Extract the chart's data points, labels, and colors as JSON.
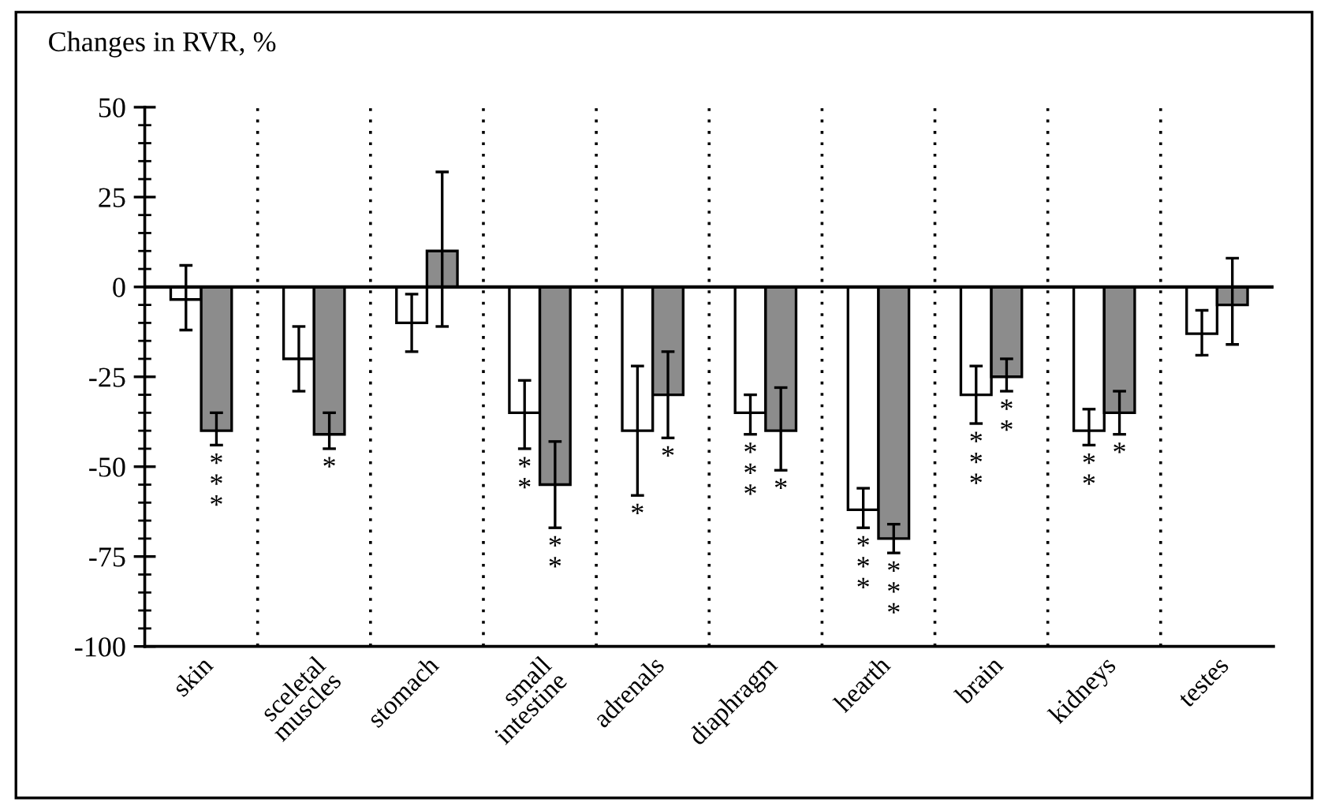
{
  "chart_data": {
    "type": "bar",
    "ylabel": "Changes in RVR, %",
    "categories": [
      "skin",
      "sceletal\nmuscles",
      "stomach",
      "small\nintestine",
      "adrenals",
      "diaphragm",
      "hearth",
      "brain",
      "kidneys",
      "testes"
    ],
    "series": [
      {
        "color": "#ffffff",
        "values": [
          -3.5,
          -20,
          -10,
          -35,
          -40,
          -35,
          -62,
          -30,
          -40,
          -13
        ],
        "errors": [
          [
            -12,
            6
          ],
          [
            -29,
            -11
          ],
          [
            -18,
            -2
          ],
          [
            -45,
            -26
          ],
          [
            -58,
            -22
          ],
          [
            -41,
            -30
          ],
          [
            -67,
            -56
          ],
          [
            -38,
            -22
          ],
          [
            -44,
            -34
          ],
          [
            -19,
            -6.5
          ]
        ],
        "value_labels": [
          null,
          null,
          null,
          "**",
          "*",
          "***",
          "***",
          "***",
          "**",
          null
        ]
      },
      {
        "color": "#8c8c8c",
        "values": [
          -40,
          -41,
          10,
          -55,
          -30,
          -40,
          -70,
          -25,
          -35,
          -5
        ],
        "errors": [
          [
            -44,
            -35
          ],
          [
            -45,
            -35
          ],
          [
            -11,
            32
          ],
          [
            -67,
            -43
          ],
          [
            -42,
            -18
          ],
          [
            -51,
            -28
          ],
          [
            -74,
            -66
          ],
          [
            -29,
            -20
          ],
          [
            -41,
            -29
          ],
          [
            -16,
            8
          ]
        ],
        "value_labels": [
          "***",
          "*",
          null,
          "**",
          "*",
          "*",
          "***",
          "**",
          "*",
          null
        ]
      }
    ],
    "ylim": [
      -100,
      50
    ],
    "yticks": [
      -100,
      -75,
      -50,
      -25,
      0,
      25,
      50
    ],
    "ref_lines": [
      {
        "axis": "y",
        "value": 0
      }
    ],
    "grid": false,
    "legend": false
  }
}
